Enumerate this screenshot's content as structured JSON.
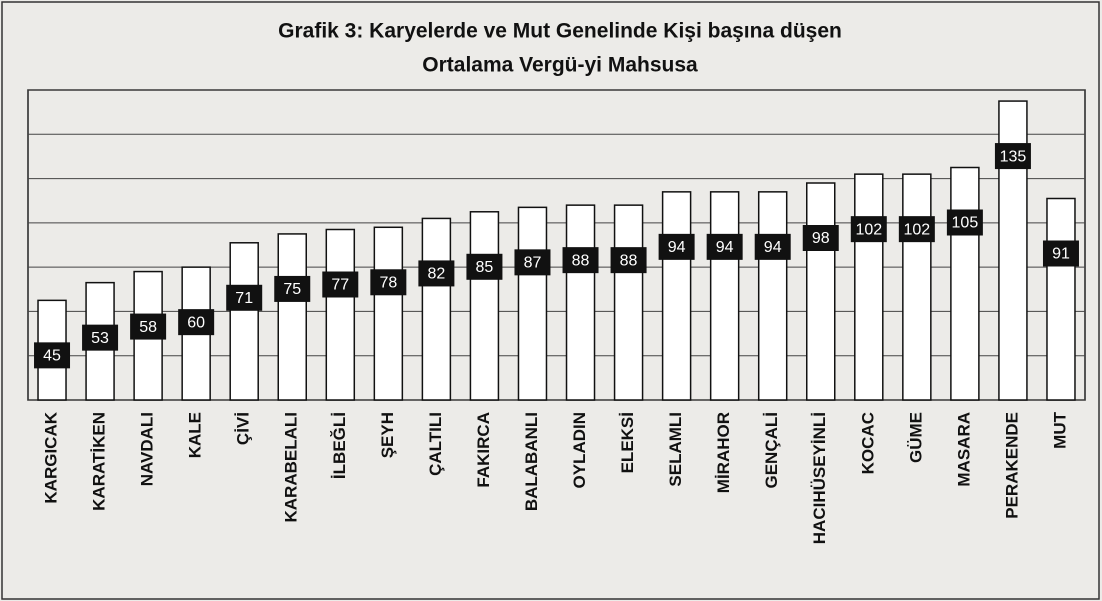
{
  "chart_data": {
    "type": "bar",
    "title": [
      "Grafik 3: Karyelerde ve Mut Genelinde Kişi başına düşen",
      "Ortalama Vergü-yi  Mahsusa"
    ],
    "categories": [
      "KARGICAK",
      "KARATİKEN",
      "NAVDALI",
      "KALE",
      "ÇİVİ",
      "KARABELALI",
      "İLBEĞLİ",
      "ŞEYH",
      "ÇALTILI",
      "FAKIRCA",
      "BALABANLI",
      "OYLADIN",
      "ELEKSİ",
      "SELAMLI",
      "MİRAHOR",
      "GENÇALİ",
      "HACIHÜSEYİNLİ",
      "KOCAC",
      "GÜME",
      "MASARA",
      "PERAKENDE",
      "MUT"
    ],
    "values": [
      45,
      53,
      58,
      60,
      71,
      75,
      77,
      78,
      82,
      85,
      87,
      88,
      88,
      94,
      94,
      94,
      98,
      102,
      102,
      105,
      135,
      91
    ],
    "color": "#ffffff",
    "ylim": [
      0,
      140
    ],
    "yticks": [
      0,
      20,
      40,
      60,
      80,
      100,
      120,
      140
    ],
    "grid": true
  }
}
